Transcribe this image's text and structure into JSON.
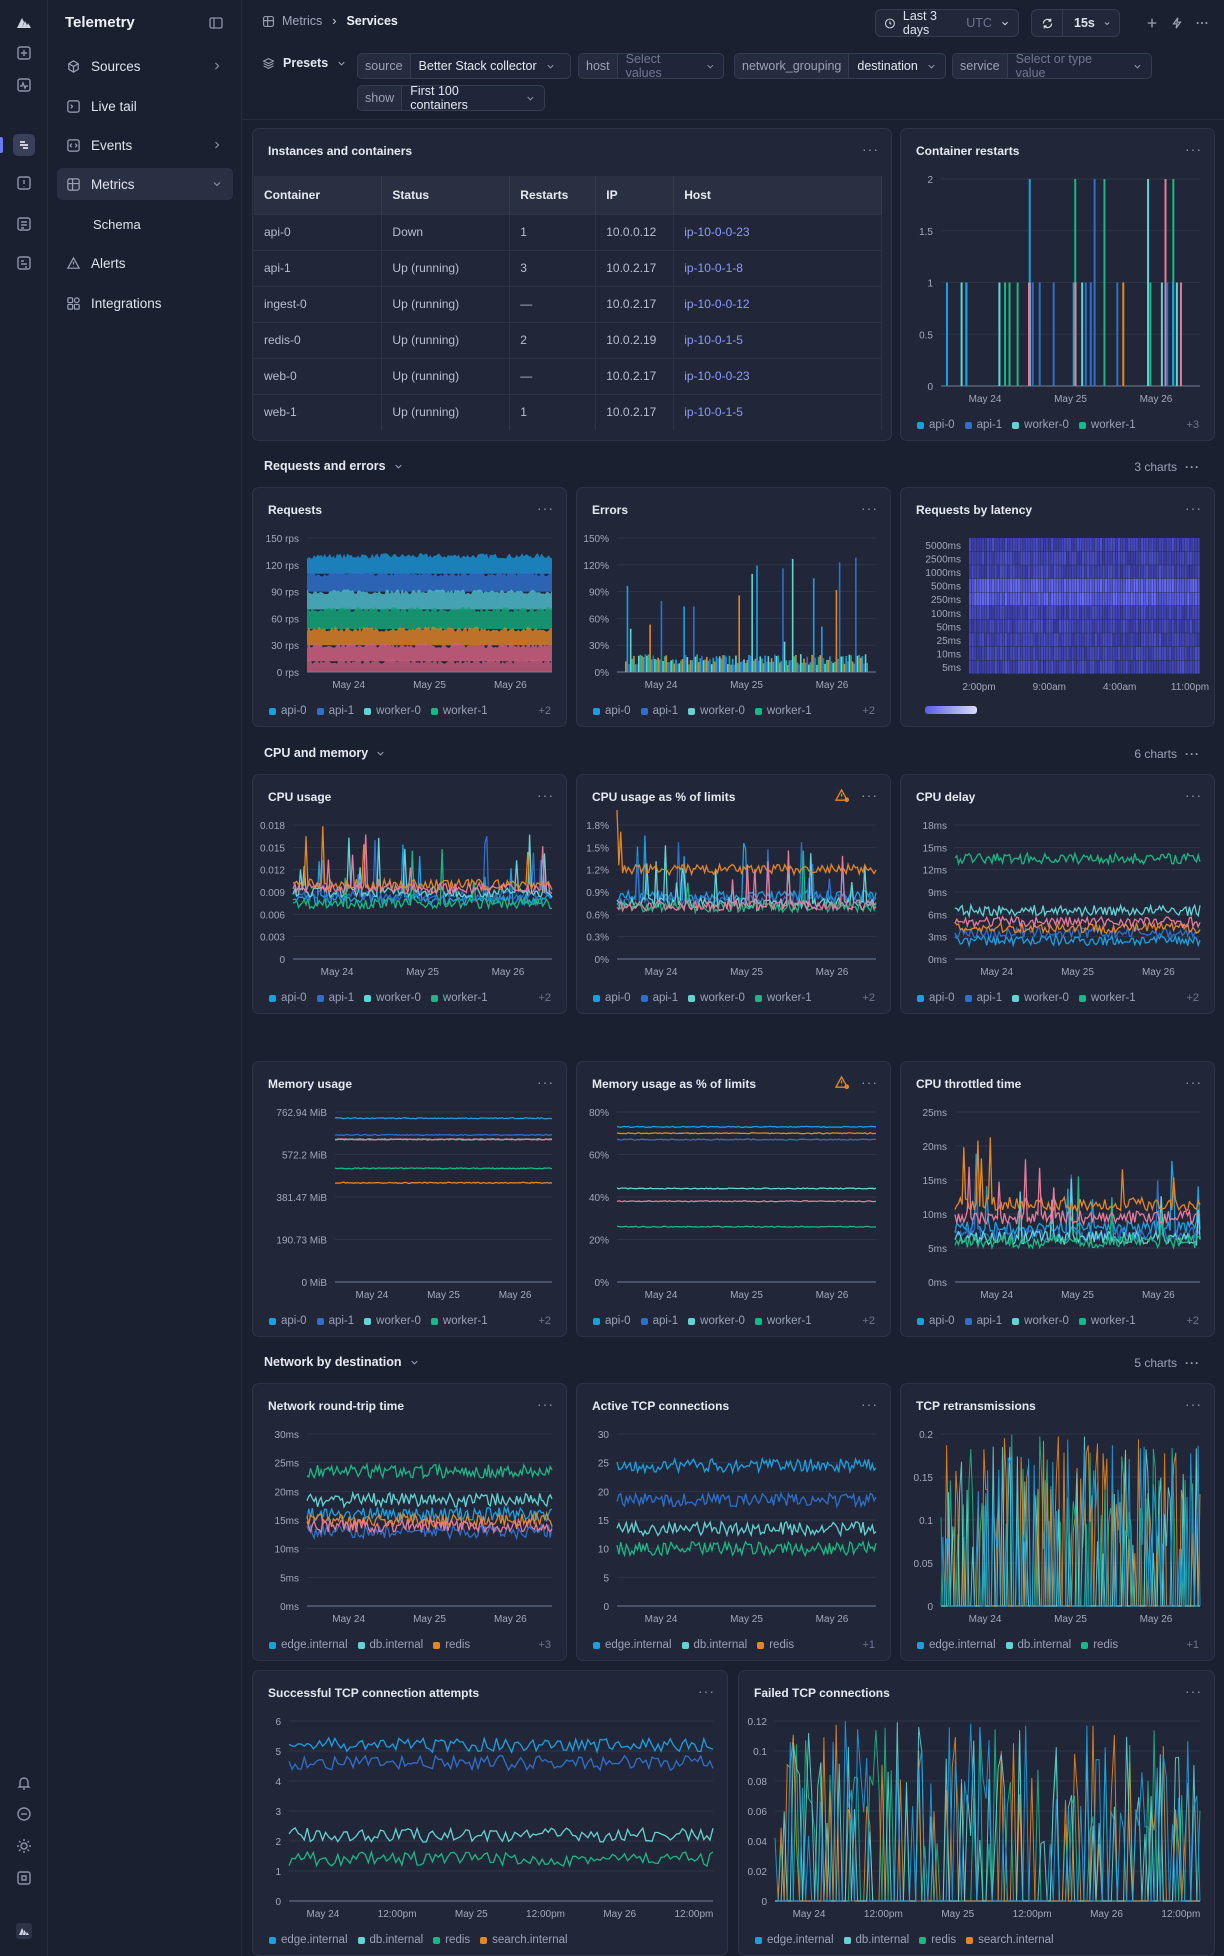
{
  "sidebar": {
    "brand": "Telemetry",
    "items": [
      {
        "label": "Sources",
        "icon": "cube-icon",
        "chevron": true
      },
      {
        "label": "Live tail",
        "icon": "terminal-icon",
        "chevron": false
      },
      {
        "label": "Events",
        "icon": "code-icon",
        "chevron": true
      },
      {
        "label": "Metrics",
        "icon": "grid-icon",
        "chevron": true,
        "selected": true
      },
      {
        "label": "Schema",
        "icon": "",
        "sub": true
      },
      {
        "label": "Alerts",
        "icon": "warning-icon",
        "chevron": false
      },
      {
        "label": "Integrations",
        "icon": "puzzle-icon",
        "chevron": false
      }
    ]
  },
  "header": {
    "breadcrumb_parent": "Metrics",
    "breadcrumb_current": "Services",
    "time_range": "Last 3 days",
    "timezone": "UTC",
    "refresh": "15s"
  },
  "filters": {
    "presets": "Presets",
    "source_key": "source",
    "source_value": "Better Stack collector",
    "host_key": "host",
    "host_placeholder": "Select values",
    "grouping_key": "network_grouping",
    "grouping_value": "destination",
    "service_key": "service",
    "service_placeholder": "Select or type value",
    "show_key": "show",
    "show_value": "First 100 containers"
  },
  "table": {
    "title": "Instances and containers",
    "columns": [
      "Container",
      "Status",
      "Restarts",
      "IP",
      "Host"
    ],
    "rows": [
      [
        "api-0",
        "Down",
        "1",
        "10.0.0.12",
        "ip-10-0-0-23"
      ],
      [
        "api-1",
        "Up (running)",
        "3",
        "10.0.2.17",
        "ip-10-0-1-8"
      ],
      [
        "ingest-0",
        "Up (running)",
        "—",
        "10.0.2.17",
        "ip-10-0-0-12"
      ],
      [
        "redis-0",
        "Up (running)",
        "2",
        "10.0.2.19",
        "ip-10-0-1-5"
      ],
      [
        "web-0",
        "Up (running)",
        "—",
        "10.0.2.17",
        "ip-10-0-0-23"
      ],
      [
        "web-1",
        "Up (running)",
        "1",
        "10.0.2.17",
        "ip-10-0-1-5"
      ]
    ]
  },
  "sections": [
    {
      "title": "Requests and errors",
      "count": "3 charts"
    },
    {
      "title": "CPU and memory",
      "count": "6 charts"
    },
    {
      "title": "Network by destination",
      "count": "5 charts"
    }
  ],
  "colors": {
    "blue": "#1a9fe0",
    "navy": "#2f6fc9",
    "teal": "#63d2d2",
    "green": "#17b884",
    "orange": "#e58620",
    "pink": "#e67a9a",
    "heat": "#5a5ee0"
  },
  "chart_data": [
    {
      "id": "restarts",
      "title": "Container restarts",
      "type": "bar",
      "x": [
        "May 24",
        "May 25",
        "May 26"
      ],
      "yticks": [
        "0",
        "0.5",
        "1",
        "1.5",
        "2"
      ],
      "ylim": [
        0,
        2
      ],
      "legend": [
        "api-0",
        "api-1",
        "worker-0",
        "worker-1"
      ],
      "more": "+3"
    },
    {
      "id": "requests",
      "title": "Requests",
      "type": "area",
      "x": [
        "May 24",
        "May 25",
        "May 26"
      ],
      "yticks": [
        "0 rps",
        "30 rps",
        "60 rps",
        "90 rps",
        "120 rps",
        "150 rps"
      ],
      "ylim": [
        0,
        150
      ],
      "legend": [
        "api-0",
        "api-1",
        "worker-0",
        "worker-1"
      ],
      "more": "+2",
      "series": [
        {
          "level": 130
        },
        {
          "level": 110
        },
        {
          "level": 90
        },
        {
          "level": 70
        },
        {
          "level": 48
        },
        {
          "level": 30
        },
        {
          "level": 12
        }
      ]
    },
    {
      "id": "errors",
      "title": "Errors",
      "type": "bar",
      "x": [
        "May 24",
        "May 25",
        "May 26"
      ],
      "yticks": [
        "0%",
        "30%",
        "60%",
        "90%",
        "120%",
        "150%"
      ],
      "ylim": [
        0,
        150
      ],
      "legend": [
        "api-0",
        "api-1",
        "worker-0",
        "worker-1"
      ],
      "more": "+2"
    },
    {
      "id": "latency",
      "title": "Requests by latency",
      "type": "heatmap",
      "x": [
        "2:00pm",
        "9:00am",
        "4:00am",
        "11:00pm"
      ],
      "yticks": [
        "5ms",
        "10ms",
        "25ms",
        "50ms",
        "100ms",
        "250ms",
        "500ms",
        "1000ms",
        "2500ms",
        "5000ms"
      ]
    },
    {
      "id": "cpu",
      "title": "CPU usage",
      "type": "line",
      "x": [
        "May 24",
        "May 25",
        "May 26"
      ],
      "yticks": [
        "0",
        "0.003",
        "0.006",
        "0.009",
        "0.012",
        "0.015",
        "0.018"
      ],
      "ylim": [
        0,
        0.018
      ],
      "legend": [
        "api-0",
        "api-1",
        "worker-0",
        "worker-1"
      ],
      "more": "+2",
      "series": [
        {
          "level": 0.008
        },
        {
          "level": 0.0085
        },
        {
          "level": 0.009
        },
        {
          "level": 0.0075
        },
        {
          "level": 0.01
        },
        {
          "level": 0.0095
        }
      ]
    },
    {
      "id": "cpupct",
      "title": "CPU usage as % of limits",
      "type": "line",
      "warn": true,
      "x": [
        "May 24",
        "May 25",
        "May 26"
      ],
      "yticks": [
        "0%",
        "0.3%",
        "0.6%",
        "0.9%",
        "1.2%",
        "1.5%",
        "1.8%"
      ],
      "ylim": [
        0,
        1.8
      ],
      "legend": [
        "api-0",
        "api-1",
        "worker-0",
        "worker-1"
      ],
      "more": "+2",
      "series": [
        {
          "level": 0.85
        },
        {
          "level": 0.8
        },
        {
          "level": 0.75
        },
        {
          "level": 0.7
        },
        {
          "level": 1.2
        },
        {
          "level": 0.72
        }
      ]
    },
    {
      "id": "cpudelay",
      "title": "CPU delay",
      "type": "line",
      "x": [
        "May 24",
        "May 25",
        "May 26"
      ],
      "yticks": [
        "0ms",
        "3ms",
        "6ms",
        "9ms",
        "12ms",
        "15ms",
        "18ms"
      ],
      "ylim": [
        0,
        18
      ],
      "legend": [
        "api-0",
        "api-1",
        "worker-0",
        "worker-1"
      ],
      "more": "+2",
      "series": [
        {
          "level": 2.5
        },
        {
          "level": 3.5
        },
        {
          "level": 6.5
        },
        {
          "level": 13.5
        },
        {
          "level": 4.2
        },
        {
          "level": 5
        }
      ]
    },
    {
      "id": "mem",
      "title": "Memory usage",
      "type": "line",
      "x": [
        "May 24",
        "May 25",
        "May 26"
      ],
      "yticks": [
        "0 MiB",
        "190.73 MiB",
        "381.47 MiB",
        "572.2 MiB",
        "762.94 MiB"
      ],
      "ylim": [
        0,
        762.94
      ],
      "legend": [
        "api-0",
        "api-1",
        "worker-0",
        "worker-1"
      ],
      "more": "+2",
      "series": [
        {
          "level": 735
        },
        {
          "level": 660
        },
        {
          "level": 640
        },
        {
          "level": 510
        },
        {
          "level": 445
        },
        {
          "level": 640
        }
      ]
    },
    {
      "id": "mempct",
      "title": "Memory usage as % of limits",
      "type": "line",
      "warn": true,
      "x": [
        "May 24",
        "May 25",
        "May 26"
      ],
      "yticks": [
        "0%",
        "20%",
        "40%",
        "60%",
        "80%"
      ],
      "ylim": [
        0,
        80
      ],
      "legend": [
        "api-0",
        "api-1",
        "worker-0",
        "worker-1"
      ],
      "more": "+2",
      "series": [
        {
          "level": 73
        },
        {
          "level": 67
        },
        {
          "level": 44
        },
        {
          "level": 26
        },
        {
          "level": 70
        },
        {
          "level": 38
        }
      ]
    },
    {
      "id": "throttle",
      "title": "CPU throttled time",
      "type": "line",
      "x": [
        "May 24",
        "May 25",
        "May 26"
      ],
      "yticks": [
        "0ms",
        "5ms",
        "10ms",
        "15ms",
        "20ms",
        "25ms"
      ],
      "ylim": [
        0,
        25
      ],
      "legend": [
        "api-0",
        "api-1",
        "worker-0",
        "worker-1"
      ],
      "more": "+2",
      "series": [
        {
          "level": 8
        },
        {
          "level": 7
        },
        {
          "level": 6.5
        },
        {
          "level": 6
        },
        {
          "level": 11.5
        },
        {
          "level": 9.5
        }
      ]
    },
    {
      "id": "rtt",
      "title": "Network round-trip time",
      "type": "line",
      "x": [
        "May 24",
        "May 25",
        "May 26"
      ],
      "yticks": [
        "0ms",
        "5ms",
        "10ms",
        "15ms",
        "20ms",
        "25ms",
        "30ms"
      ],
      "ylim": [
        0,
        30
      ],
      "legend": [
        "edge.internal",
        "db.internal",
        "redis"
      ],
      "more": "+3",
      "series": [
        {
          "level": 16
        },
        {
          "level": 13
        },
        {
          "level": 18.5
        },
        {
          "level": 23.5
        },
        {
          "level": 15
        },
        {
          "level": 14
        }
      ]
    },
    {
      "id": "tcpactive",
      "title": "Active TCP connections",
      "type": "line",
      "x": [
        "May 24",
        "May 25",
        "May 26"
      ],
      "yticks": [
        "0",
        "5",
        "10",
        "15",
        "20",
        "25",
        "30"
      ],
      "ylim": [
        0,
        30
      ],
      "legend": [
        "edge.internal",
        "db.internal",
        "redis"
      ],
      "more": "+1",
      "series": [
        {
          "level": 24.5
        },
        {
          "level": 18.5
        },
        {
          "level": 13.5
        },
        {
          "level": 10
        }
      ]
    },
    {
      "id": "retrans",
      "title": "TCP retransmissions",
      "type": "line",
      "x": [
        "May 24",
        "May 25",
        "May 26"
      ],
      "yticks": [
        "0",
        "0.05",
        "0.1",
        "0.15",
        "0.2"
      ],
      "ylim": [
        0,
        0.2
      ],
      "legend": [
        "edge.internal",
        "db.internal",
        "redis"
      ],
      "more": "+1"
    },
    {
      "id": "tcpok",
      "title": "Successful TCP connection attempts",
      "type": "line",
      "x": [
        "May 24",
        "12:00pm",
        "May 25",
        "12:00pm",
        "May 26",
        "12:00pm"
      ],
      "yticks": [
        "0",
        "1",
        "2",
        "3",
        "4",
        "5",
        "6"
      ],
      "ylim": [
        0,
        6
      ],
      "legend": [
        "edge.internal",
        "db.internal",
        "redis",
        "search.internal"
      ],
      "series": [
        {
          "level": 5.2
        },
        {
          "level": 4.6
        },
        {
          "level": 2.2
        },
        {
          "level": 1.4
        }
      ]
    },
    {
      "id": "tcpfail",
      "title": "Failed TCP connections",
      "type": "line",
      "x": [
        "May 24",
        "12:00pm",
        "May 25",
        "12:00pm",
        "May 26",
        "12:00pm"
      ],
      "yticks": [
        "0",
        "0.02",
        "0.04",
        "0.06",
        "0.08",
        "0.1",
        "0.12"
      ],
      "ylim": [
        0,
        0.12
      ],
      "legend": [
        "edge.internal",
        "db.internal",
        "redis",
        "search.internal"
      ]
    }
  ]
}
